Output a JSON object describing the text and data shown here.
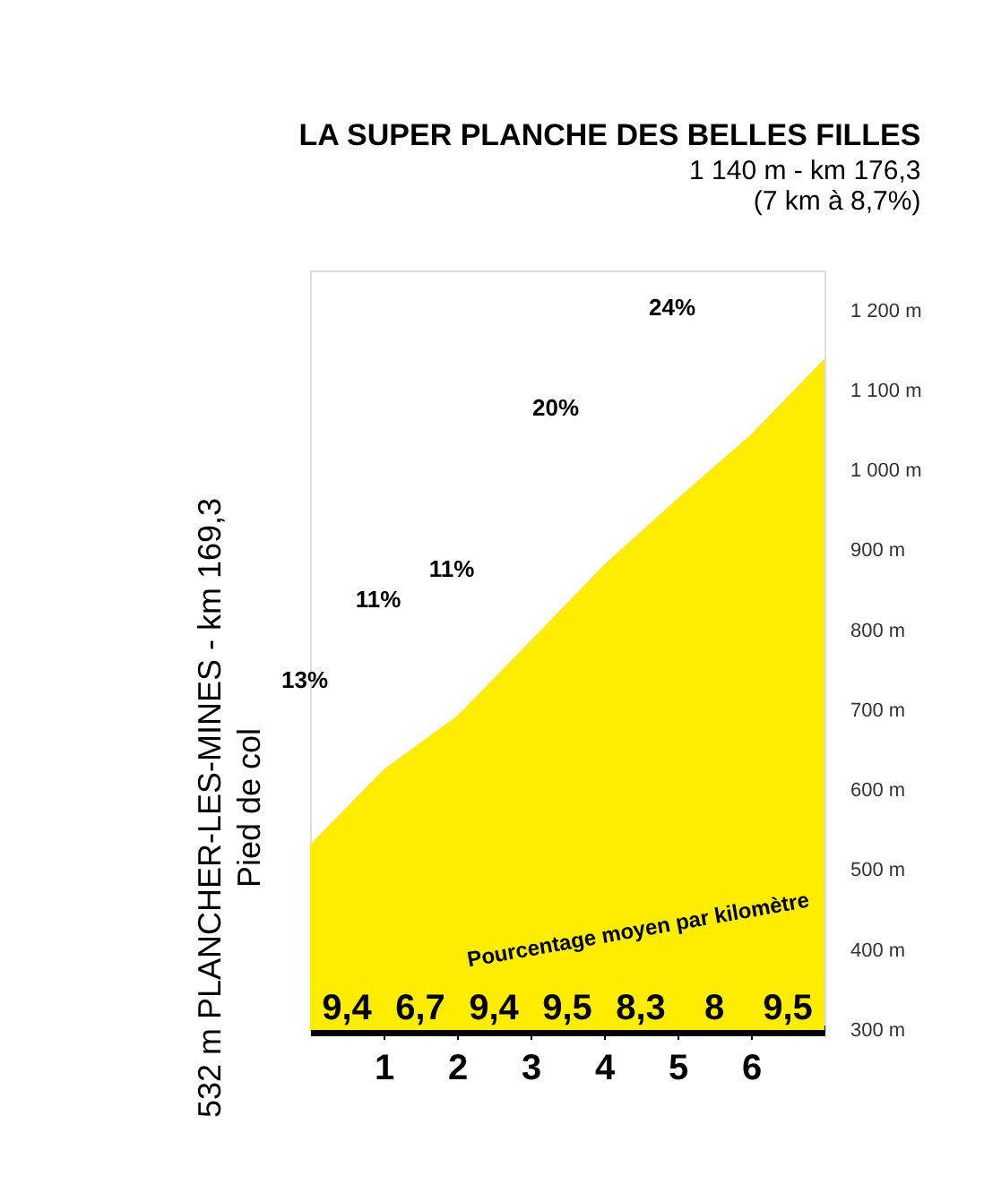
{
  "chart_data": {
    "type": "area",
    "title": "LA SUPER PLANCHE DES BELLES FILLES",
    "subtitle": "1 140 m - km 176,3\n(7 km à 8,7%)",
    "x": [
      0,
      1,
      2,
      3,
      4,
      5,
      6,
      7
    ],
    "series": [
      {
        "color": "#ffed00",
        "values": [
          532,
          626,
          693,
          787,
          882,
          965,
          1045,
          1140
        ]
      }
    ],
    "xlim": [
      0,
      7
    ],
    "xticks": [
      1,
      2,
      3,
      4,
      5,
      6
    ],
    "ylim": [
      300,
      1250
    ],
    "yticks": [
      {
        "value": 300,
        "label": "300 m"
      },
      {
        "value": 400,
        "label": "400 m"
      },
      {
        "value": 500,
        "label": "500 m"
      },
      {
        "value": 600,
        "label": "600 m"
      },
      {
        "value": 700,
        "label": "700 m"
      },
      {
        "value": 800,
        "label": "800 m"
      },
      {
        "value": 900,
        "label": "900 m"
      },
      {
        "value": 1000,
        "label": "1 000 m"
      },
      {
        "value": 1100,
        "label": "1 100 m"
      },
      {
        "value": 1200,
        "label": "1 200 m"
      }
    ],
    "annotations": [
      "532 m PLANCHER-LES-MINES - km 169,3",
      "Pied de col",
      "Pourcentage moyen par kilomètre",
      "9,4",
      "6,7",
      "9,4",
      "9,5",
      "8,3",
      "8",
      "9,5",
      "13%",
      "11%",
      "11%",
      "20%",
      "24%"
    ]
  }
}
